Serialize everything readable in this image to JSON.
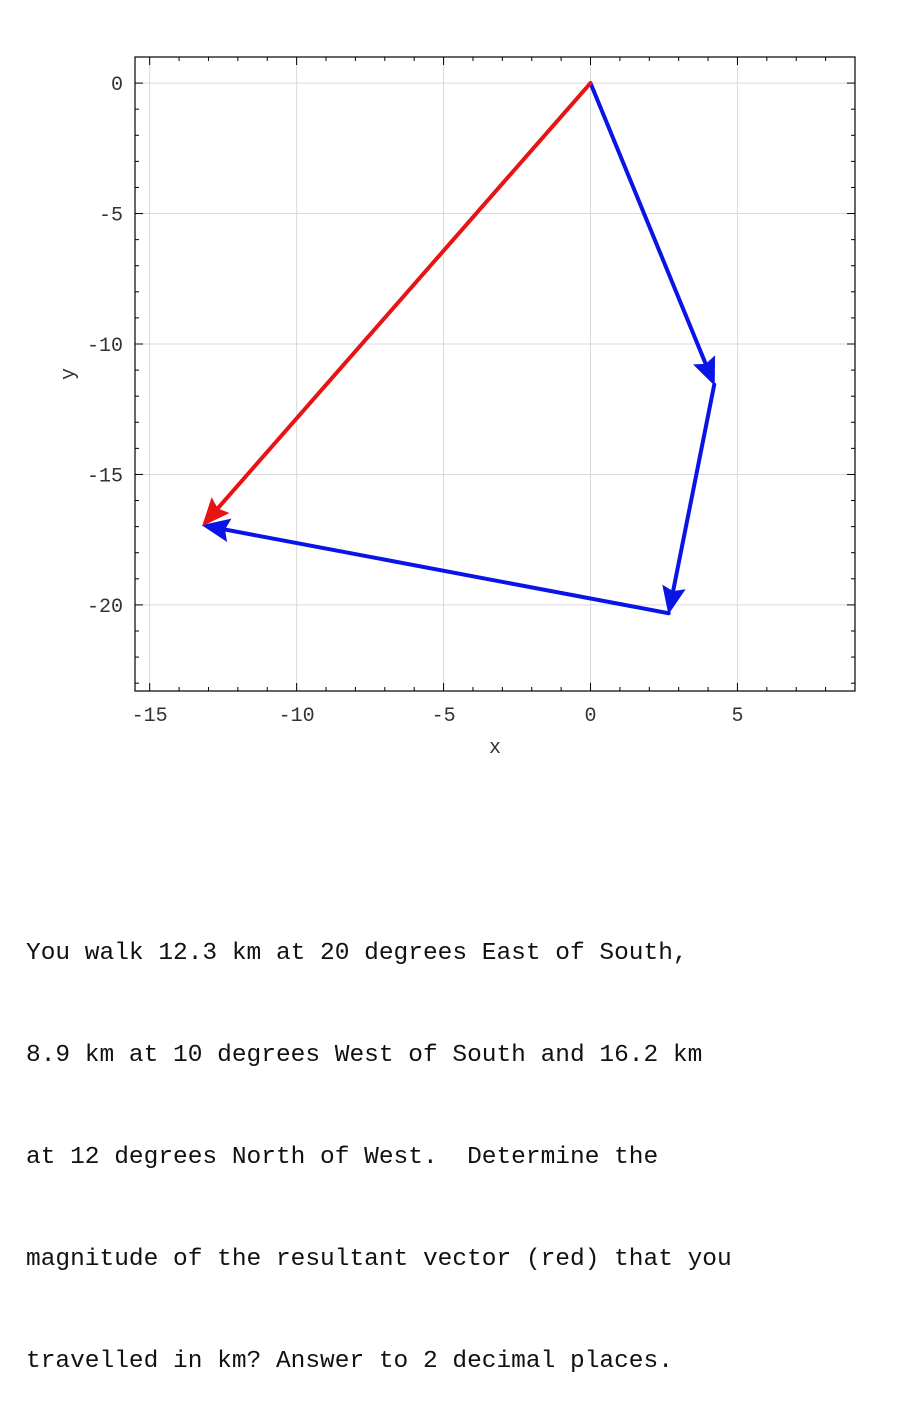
{
  "chart_data": {
    "type": "vector",
    "xlabel": "x",
    "ylabel": "y",
    "xlim": [
      -15.5,
      9
    ],
    "ylim": [
      -23.3,
      1
    ],
    "xticks": [
      -15,
      -10,
      -5,
      0,
      5
    ],
    "yticks": [
      0,
      -5,
      -10,
      -15,
      -20
    ],
    "grid": true,
    "vectors": [
      {
        "color": "#0a14e6",
        "start": [
          0,
          0
        ],
        "end": [
          4.21,
          -11.56
        ]
      },
      {
        "color": "#0a14e6",
        "start": [
          4.21,
          -11.56
        ],
        "end": [
          2.66,
          -20.32
        ]
      },
      {
        "color": "#0a14e6",
        "start": [
          2.66,
          -20.32
        ],
        "end": [
          -13.19,
          -16.95
        ]
      },
      {
        "color": "#e61414",
        "start": [
          0,
          0
        ],
        "end": [
          -13.19,
          -16.95
        ]
      }
    ]
  },
  "question": {
    "lines": [
      "You walk 12.3 km at 20 degrees East of South,",
      "8.9 km at 10 degrees West of South and 16.2 km",
      "at 12 degrees North of West.  Determine the",
      "magnitude of the resultant vector (red) that you",
      "travelled in km? Answer to 2 decimal places."
    ]
  }
}
